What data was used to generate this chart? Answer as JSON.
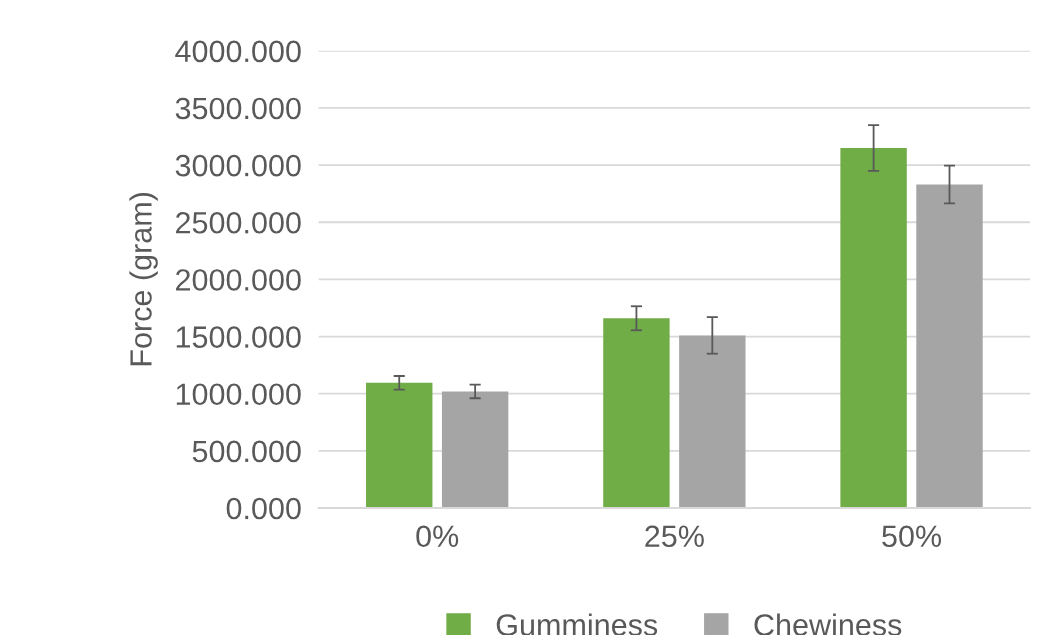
{
  "chart_data": {
    "type": "bar",
    "ylabel": "Force (gram)",
    "categories": [
      "0%",
      "25%",
      "50%"
    ],
    "series": [
      {
        "name": "Gumminess",
        "color": "#70ad47",
        "values": [
          1095,
          1660,
          3150
        ],
        "errors": [
          60,
          105,
          200
        ]
      },
      {
        "name": "Chewiness",
        "color": "#a5a5a5",
        "values": [
          1020,
          1510,
          2830
        ],
        "errors": [
          60,
          160,
          165
        ]
      }
    ],
    "ylim": [
      0,
      4000
    ],
    "yticks": [
      {
        "value": 0,
        "label": "0.000"
      },
      {
        "value": 500,
        "label": "500.000"
      },
      {
        "value": 1000,
        "label": "1000.000"
      },
      {
        "value": 1500,
        "label": "1500.000"
      },
      {
        "value": 2000,
        "label": "2000.000"
      },
      {
        "value": 2500,
        "label": "2500.000"
      },
      {
        "value": 3000,
        "label": "3000.000"
      },
      {
        "value": 3500,
        "label": "3500.000"
      },
      {
        "value": 4000,
        "label": "4000.000"
      }
    ],
    "grid": "y",
    "legend": "bottom"
  }
}
